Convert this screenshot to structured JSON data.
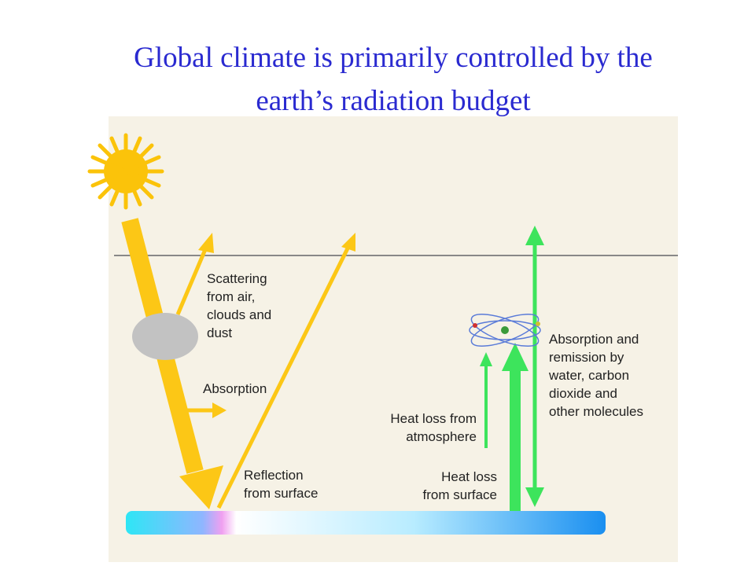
{
  "title": [
    "Global climate is primarily controlled by the",
    "earth’s radiation budget"
  ],
  "labels": {
    "scattering": [
      "Scattering",
      "from air,",
      "clouds and",
      "dust"
    ],
    "absorption": [
      "Absorption"
    ],
    "reflection": [
      "Reflection",
      "from surface"
    ],
    "heat_loss_atmosphere": [
      "Heat loss from",
      "atmosphere"
    ],
    "heat_loss_surface": [
      "Heat loss",
      "from surface"
    ],
    "remission": [
      "Absorption and",
      "remission by",
      "water, carbon",
      "dioxide and",
      "other molecules"
    ]
  }
}
